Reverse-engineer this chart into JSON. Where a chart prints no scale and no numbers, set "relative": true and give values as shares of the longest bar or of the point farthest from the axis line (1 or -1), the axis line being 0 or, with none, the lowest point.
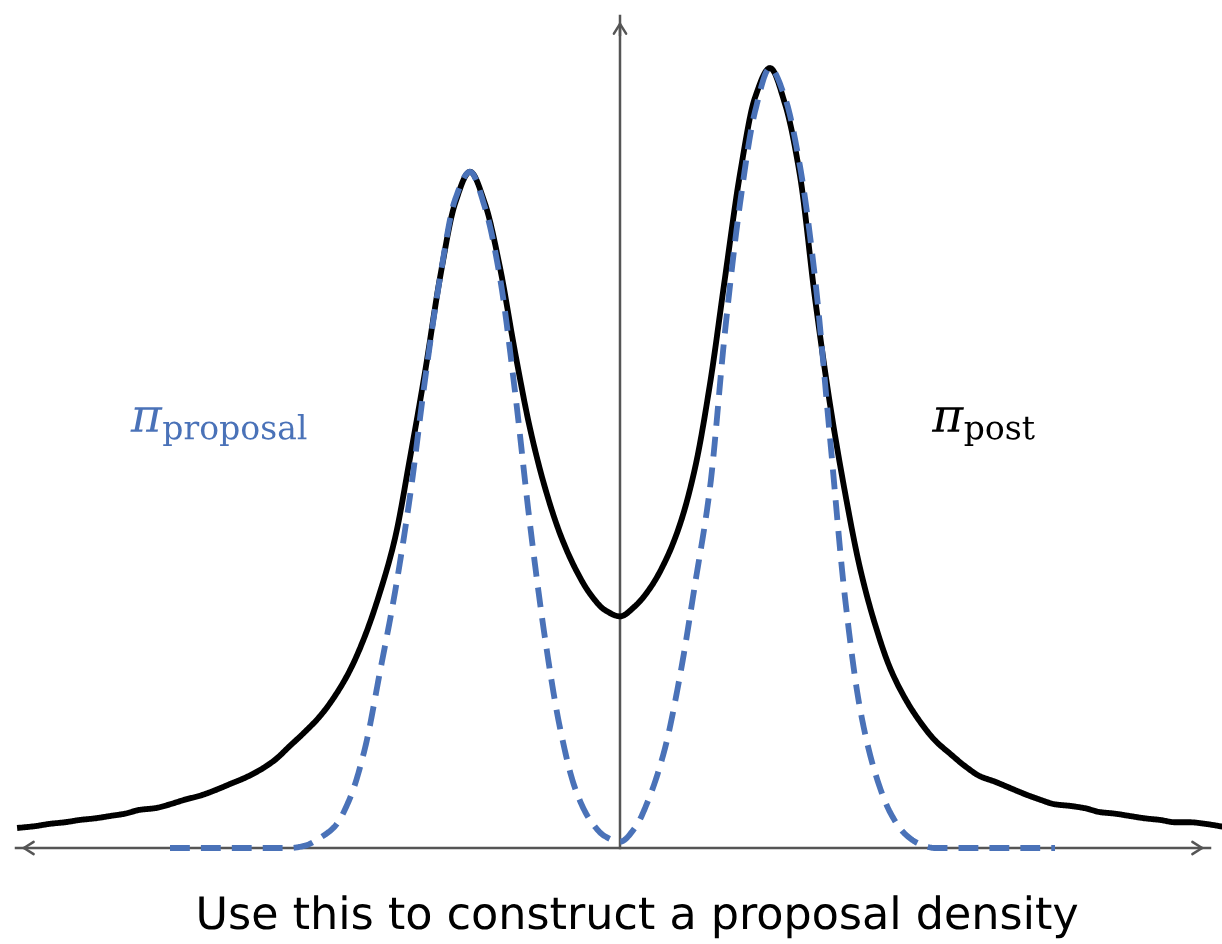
{
  "chart_data": {
    "type": "line",
    "relative": true,
    "tick_labels": false,
    "xlabel": "Use this to construct a proposal density",
    "categories": [
      null,
      null,
      null,
      null,
      null,
      null,
      null,
      null,
      null,
      null,
      null,
      null,
      null,
      null,
      null,
      null,
      null,
      null,
      null,
      null,
      null,
      null,
      null,
      null,
      null,
      null,
      null,
      null,
      null,
      null,
      null,
      null,
      null,
      null,
      null,
      null,
      null,
      null,
      null,
      null,
      null,
      null,
      null,
      null,
      null,
      null,
      null,
      null,
      null,
      null,
      null,
      null,
      null,
      null,
      null,
      null,
      null,
      null,
      null,
      null,
      null,
      null,
      null,
      null,
      null,
      null,
      null,
      null,
      null,
      null,
      null,
      null,
      null,
      null,
      null,
      null,
      null,
      null,
      null,
      null,
      null
    ],
    "series": [
      {
        "name": "π$_{post}$",
        "color": "#000000",
        "line_style": "solid",
        "values": [
          0.026,
          0.028,
          0.031,
          0.033,
          0.036,
          0.038,
          0.041,
          0.044,
          0.049,
          0.051,
          0.056,
          0.062,
          0.067,
          0.074,
          0.082,
          0.09,
          0.1,
          0.113,
          0.131,
          0.149,
          0.169,
          0.195,
          0.228,
          0.272,
          0.328,
          0.397,
          0.5,
          0.61,
          0.731,
          0.826,
          0.867,
          0.826,
          0.744,
          0.636,
          0.538,
          0.462,
          0.403,
          0.359,
          0.326,
          0.305,
          0.297,
          0.31,
          0.333,
          0.367,
          0.415,
          0.487,
          0.595,
          0.731,
          0.864,
          0.962,
          1,
          0.954,
          0.862,
          0.705,
          0.569,
          0.456,
          0.359,
          0.287,
          0.231,
          0.192,
          0.162,
          0.138,
          0.121,
          0.105,
          0.092,
          0.085,
          0.077,
          0.069,
          0.062,
          0.056,
          0.054,
          0.051,
          0.046,
          0.044,
          0.041,
          0.038,
          0.036,
          0.033,
          0.033,
          0.031,
          0.028
        ]
      },
      {
        "name": "π$_{proposal}$",
        "color": "#4a72b8",
        "line_style": "dashed",
        "values": [
          null,
          null,
          null,
          null,
          null,
          null,
          null,
          null,
          null,
          null,
          0,
          0,
          0,
          0,
          0,
          0,
          0,
          0,
          0,
          0.003,
          0.013,
          0.028,
          0.064,
          0.128,
          0.226,
          0.328,
          0.451,
          0.6,
          0.731,
          0.831,
          0.867,
          0.821,
          0.731,
          0.585,
          0.415,
          0.269,
          0.154,
          0.077,
          0.036,
          0.015,
          0.008,
          0.026,
          0.067,
          0.128,
          0.221,
          0.338,
          0.462,
          0.662,
          0.826,
          0.944,
          1,
          0.962,
          0.874,
          0.731,
          0.526,
          0.321,
          0.179,
          0.097,
          0.046,
          0.018,
          0.005,
          0,
          0,
          0,
          0,
          0,
          0,
          0,
          0,
          0,
          null,
          null,
          null,
          null,
          null,
          null,
          null,
          null,
          null,
          null,
          null
        ]
      }
    ]
  }
}
